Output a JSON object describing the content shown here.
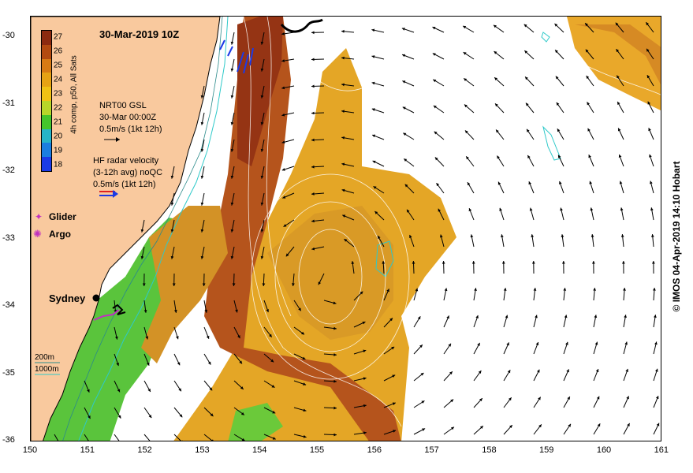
{
  "map": {
    "title": "30-Mar-2019 10Z",
    "credit": "© IMOS 04-Apr-2019 14:10 Hobart",
    "colorbar": {
      "label": "4h comp, p50, All Sats",
      "ticks": [
        "27",
        "26",
        "25",
        "24",
        "23",
        "22",
        "21",
        "20",
        "19",
        "18"
      ],
      "colors": [
        "#8c2a10",
        "#b34a10",
        "#d77a14",
        "#e6a214",
        "#f0c214",
        "#b7d629",
        "#44c52b",
        "#26b4c8",
        "#1b7ee0",
        "#1b3ae6"
      ]
    },
    "nrt_legend": {
      "line1": "NRT00 GSL",
      "line2": "30-Mar 00:00Z",
      "line3": "0.5m/s (1kt 12h)"
    },
    "hf_legend": {
      "line1": "HF radar velocity",
      "line2": "(3-12h avg) noQC",
      "line3": "0.5m/s (1kt 12h)"
    },
    "glider_label": "Glider",
    "argo_label": "Argo",
    "city": "Sydney",
    "depth_200": "200m",
    "depth_1000": "1000m",
    "x_ticks": [
      "150",
      "151",
      "152",
      "153",
      "154",
      "155",
      "156",
      "157",
      "158",
      "159",
      "160",
      "161"
    ],
    "y_ticks": [
      "-30",
      "-31",
      "-32",
      "-33",
      "-34",
      "-35",
      "-36"
    ],
    "colors": {
      "land": "#f9c99e",
      "sst_hot": "#b8521a",
      "sst_warm": "#d99a26",
      "sst_mid": "#e8b028",
      "sst_cool": "#59c43a",
      "depth_line": "#2ec9c9",
      "glider": "#c030c0",
      "hf_arrow": "#1b3ae6"
    }
  }
}
